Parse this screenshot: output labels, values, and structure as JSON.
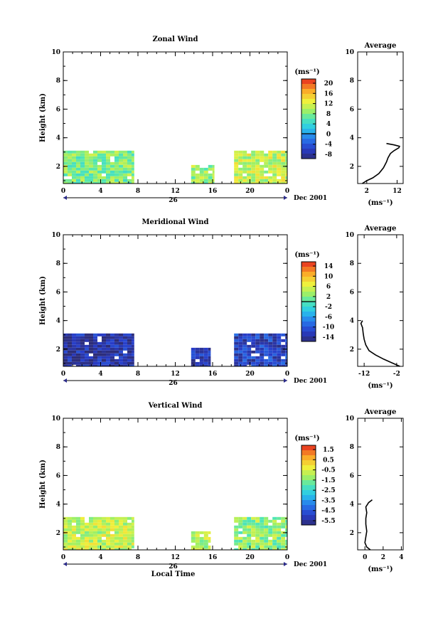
{
  "chart_data": [
    {
      "type": "heatmap",
      "title": "Zonal Wind",
      "ylabel": "Height (km)",
      "xticks": [
        "0",
        "4",
        "8",
        "12",
        "16",
        "20",
        "0"
      ],
      "yticks": [
        "2",
        "4",
        "6",
        "8",
        "10"
      ],
      "ylim": [
        0.8,
        10
      ],
      "date_label": "26",
      "month_label": "Dec 2001",
      "colorbar": {
        "unit": "(ms⁻¹)",
        "ticks": [
          "20",
          "16",
          "12",
          "8",
          "4",
          "0",
          "-4",
          "-8"
        ],
        "min": -10,
        "max": 22,
        "contour": 0
      },
      "blocks": [
        {
          "x0": 0,
          "x1": 7.6,
          "top": 3.1,
          "value": 8
        },
        {
          "x0": 13.7,
          "x1": 16.2,
          "top": 2.1,
          "value": 9
        },
        {
          "x0": 18.3,
          "x1": 24,
          "top": 3.1,
          "value": 11
        }
      ],
      "average": {
        "title": "Average",
        "xunit": "(ms⁻¹)",
        "xticks": [
          "2",
          "12"
        ],
        "yticks": [
          "2",
          "4",
          "6",
          "8",
          "10"
        ],
        "xlim": [
          -1,
          14
        ],
        "ylim": [
          0.8,
          10
        ],
        "profile": [
          [
            0.5,
            0.8
          ],
          [
            2,
            1.0
          ],
          [
            4,
            1.2
          ],
          [
            6,
            1.5
          ],
          [
            7.5,
            1.9
          ],
          [
            8.5,
            2.3
          ],
          [
            9,
            2.6
          ],
          [
            9.8,
            2.9
          ],
          [
            11,
            3.1
          ],
          [
            12.6,
            3.3
          ],
          [
            12.8,
            3.4
          ],
          [
            11,
            3.5
          ],
          [
            8.5,
            3.6
          ]
        ]
      }
    },
    {
      "type": "heatmap",
      "title": "Meridional Wind",
      "ylabel": "Height (km)",
      "xticks": [
        "0",
        "4",
        "8",
        "12",
        "16",
        "20",
        "0"
      ],
      "yticks": [
        "2",
        "4",
        "6",
        "8",
        "10"
      ],
      "ylim": [
        0.8,
        10
      ],
      "date_label": "26",
      "month_label": "Dec 2001",
      "colorbar": {
        "unit": "(ms⁻¹)",
        "ticks": [
          "14",
          "10",
          "6",
          "2",
          "-2",
          "-6",
          "-10",
          "-14"
        ],
        "min": -16,
        "max": 16,
        "contour": 0
      },
      "blocks": [
        {
          "x0": 0,
          "x1": 7.6,
          "top": 3.1,
          "value": -14
        },
        {
          "x0": 13.7,
          "x1": 15.8,
          "top": 2.1,
          "value": -13
        },
        {
          "x0": 18.3,
          "x1": 24,
          "top": 3.1,
          "value": -12
        }
      ],
      "average": {
        "title": "Average",
        "xunit": "(ms⁻¹)",
        "xticks": [
          "-12",
          "-2"
        ],
        "yticks": [
          "2",
          "4",
          "6",
          "8",
          "10"
        ],
        "xlim": [
          -14,
          0
        ],
        "ylim": [
          0.8,
          10
        ],
        "profile": [
          [
            -1,
            0.8
          ],
          [
            -3,
            1.0
          ],
          [
            -6,
            1.3
          ],
          [
            -8.5,
            1.6
          ],
          [
            -10.5,
            1.9
          ],
          [
            -11.5,
            2.3
          ],
          [
            -12,
            2.7
          ],
          [
            -12.3,
            3.1
          ],
          [
            -12.5,
            3.5
          ],
          [
            -13,
            3.8
          ],
          [
            -12.5,
            4.0
          ]
        ]
      }
    },
    {
      "type": "heatmap",
      "title": "Vertical Wind",
      "ylabel": "Height (km)",
      "xlabel": "Local Time",
      "xticks": [
        "0",
        "4",
        "8",
        "12",
        "16",
        "20",
        "0"
      ],
      "yticks": [
        "2",
        "4",
        "6",
        "8",
        "10"
      ],
      "ylim": [
        0.8,
        10
      ],
      "date_label": "26",
      "month_label": "Dec 2001",
      "colorbar": {
        "unit": "(ms⁻¹)",
        "ticks": [
          "1.5",
          "0.5",
          "-0.5",
          "-1.5",
          "-2.5",
          "-3.5",
          "-4.5",
          "-5.5"
        ],
        "min": -6,
        "max": 2,
        "contour": null
      },
      "blocks": [
        {
          "x0": 0,
          "x1": 7.6,
          "top": 3.1,
          "value": -0.8
        },
        {
          "x0": 13.7,
          "x1": 15.8,
          "top": 2.1,
          "value": -0.9
        },
        {
          "x0": 18.3,
          "x1": 24,
          "top": 3.1,
          "value": -1.3
        }
      ],
      "average": {
        "title": "Average",
        "xunit": "(ms⁻¹)",
        "xticks": [
          "0",
          "2",
          "4"
        ],
        "yticks": [
          "2",
          "4",
          "6",
          "8",
          "10"
        ],
        "xlim": [
          -0.8,
          4.2
        ],
        "ylim": [
          0.8,
          10
        ],
        "profile": [
          [
            0.6,
            0.8
          ],
          [
            0.2,
            1.0
          ],
          [
            0,
            1.3
          ],
          [
            0.1,
            1.7
          ],
          [
            0.2,
            2.1
          ],
          [
            0.1,
            2.6
          ],
          [
            0.1,
            3.0
          ],
          [
            0.2,
            3.4
          ],
          [
            0.1,
            3.8
          ],
          [
            0.4,
            4.1
          ],
          [
            0.8,
            4.3
          ]
        ]
      }
    }
  ]
}
